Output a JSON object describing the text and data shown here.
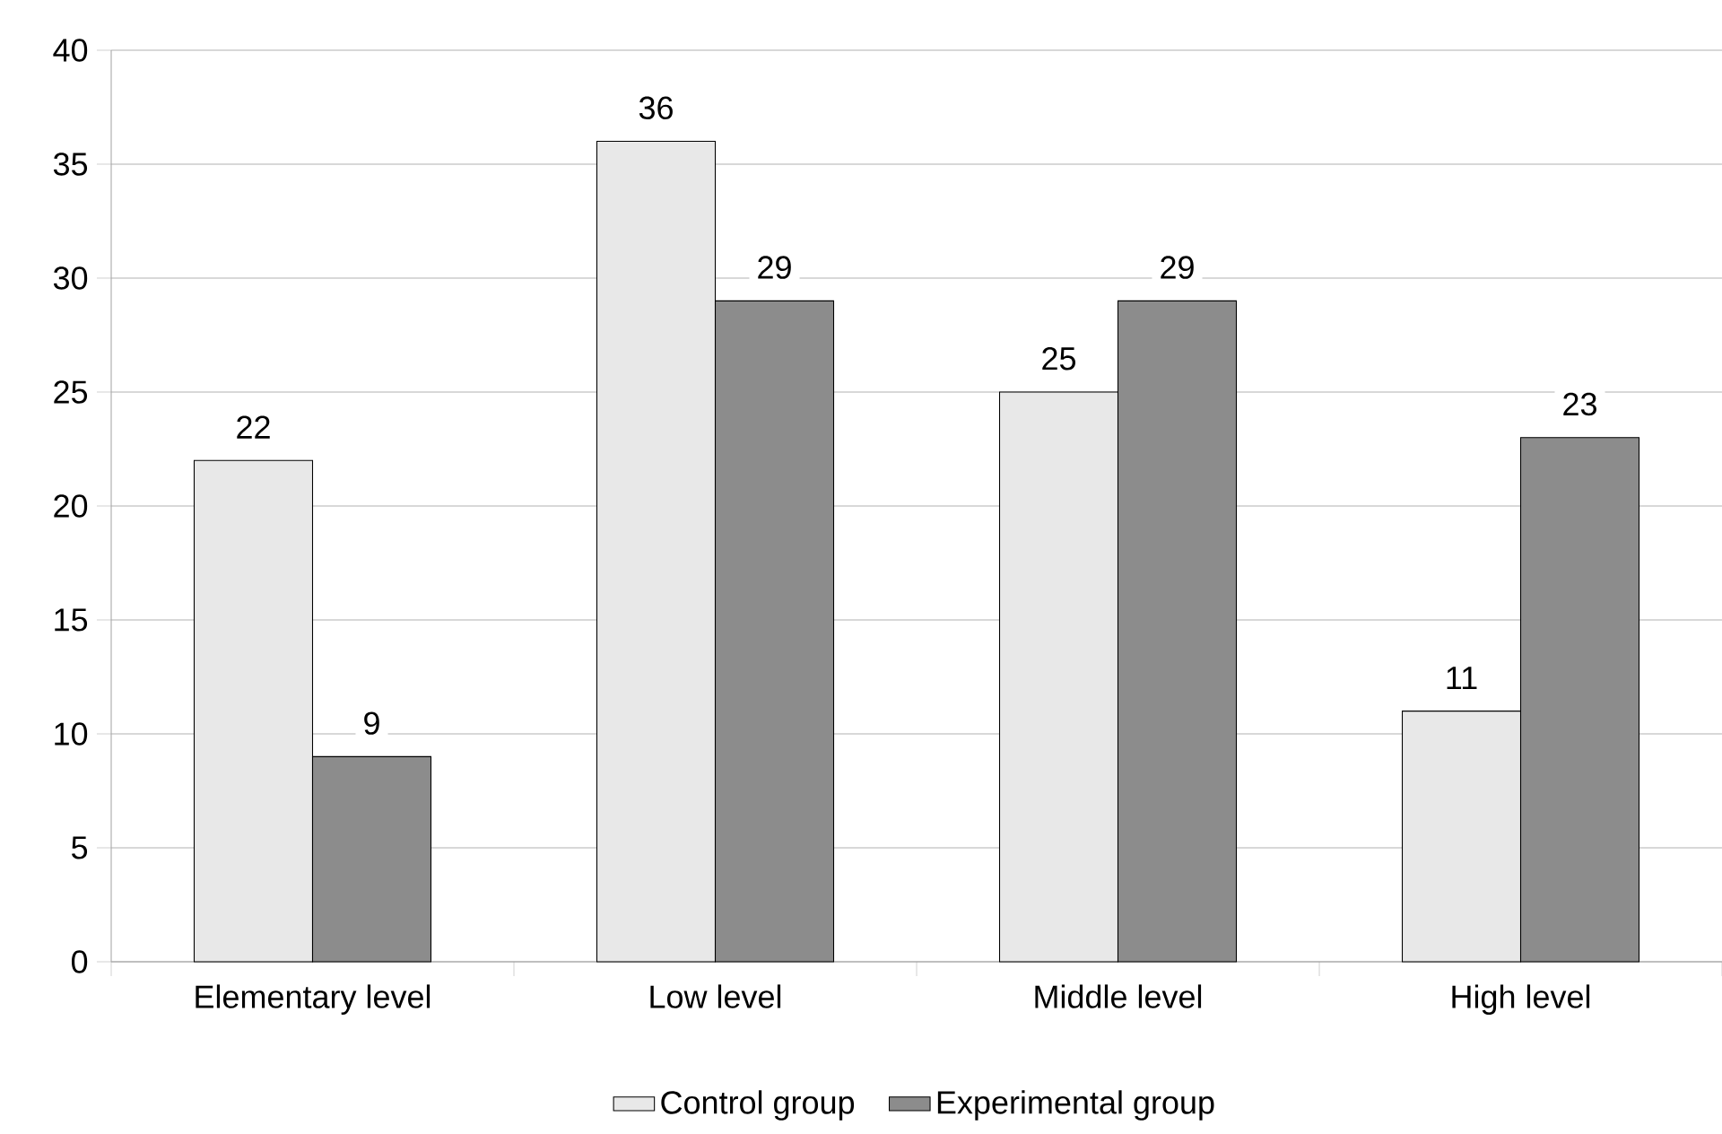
{
  "chart_data": {
    "type": "bar",
    "categories": [
      "Elementary level",
      "Low level",
      "Middle level",
      "High level"
    ],
    "series": [
      {
        "name": "Control group",
        "color": "#e8e8e8",
        "values": [
          22,
          36,
          25,
          11
        ]
      },
      {
        "name": "Experimental group",
        "color": "#8c8c8c",
        "values": [
          9,
          29,
          29,
          23
        ]
      }
    ],
    "ylim": [
      0,
      40
    ],
    "yticks": [
      0,
      5,
      10,
      15,
      20,
      25,
      30,
      35,
      40
    ],
    "grid": "y",
    "legend": "bottom",
    "data_labels": true
  }
}
